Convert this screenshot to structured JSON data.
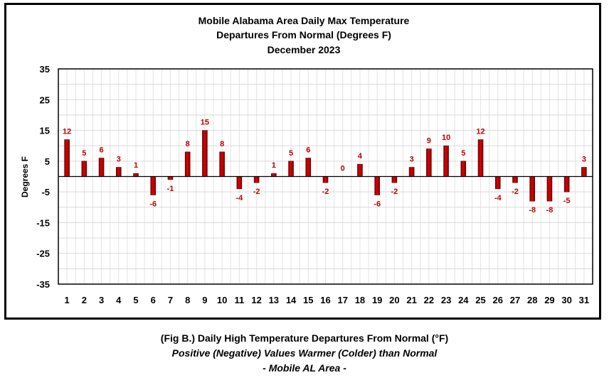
{
  "chart_data": {
    "type": "bar",
    "title": [
      "Mobile Alabama Area Daily Max Temperature",
      "Departures From Normal (Degrees F)",
      "December 2023"
    ],
    "xlabel": "",
    "ylabel": "Degrees F",
    "categories": [
      "1",
      "2",
      "3",
      "4",
      "5",
      "6",
      "7",
      "8",
      "9",
      "10",
      "11",
      "12",
      "13",
      "14",
      "15",
      "16",
      "17",
      "18",
      "19",
      "20",
      "21",
      "22",
      "23",
      "24",
      "25",
      "26",
      "27",
      "28",
      "29",
      "30",
      "31"
    ],
    "values": [
      12,
      5,
      6,
      3,
      1,
      -6,
      -1,
      8,
      15,
      8,
      -4,
      -2,
      1,
      5,
      6,
      -2,
      0,
      4,
      -6,
      -2,
      3,
      9,
      10,
      5,
      12,
      -4,
      -2,
      -8,
      -8,
      -5,
      3
    ],
    "ylim": [
      -35,
      35
    ],
    "yticks": [
      35,
      25,
      15,
      5,
      -5,
      -15,
      -25,
      -35
    ],
    "grid": true,
    "data_labels": true,
    "bar_color": "#c00000",
    "label_color": "#c00000"
  },
  "caption": {
    "line1": "(Fig B.) Daily High Temperature Departures From Normal (°F)",
    "line2": "Positive (Negative) Values Warmer (Colder) than Normal",
    "line3": "- Mobile AL Area -"
  }
}
